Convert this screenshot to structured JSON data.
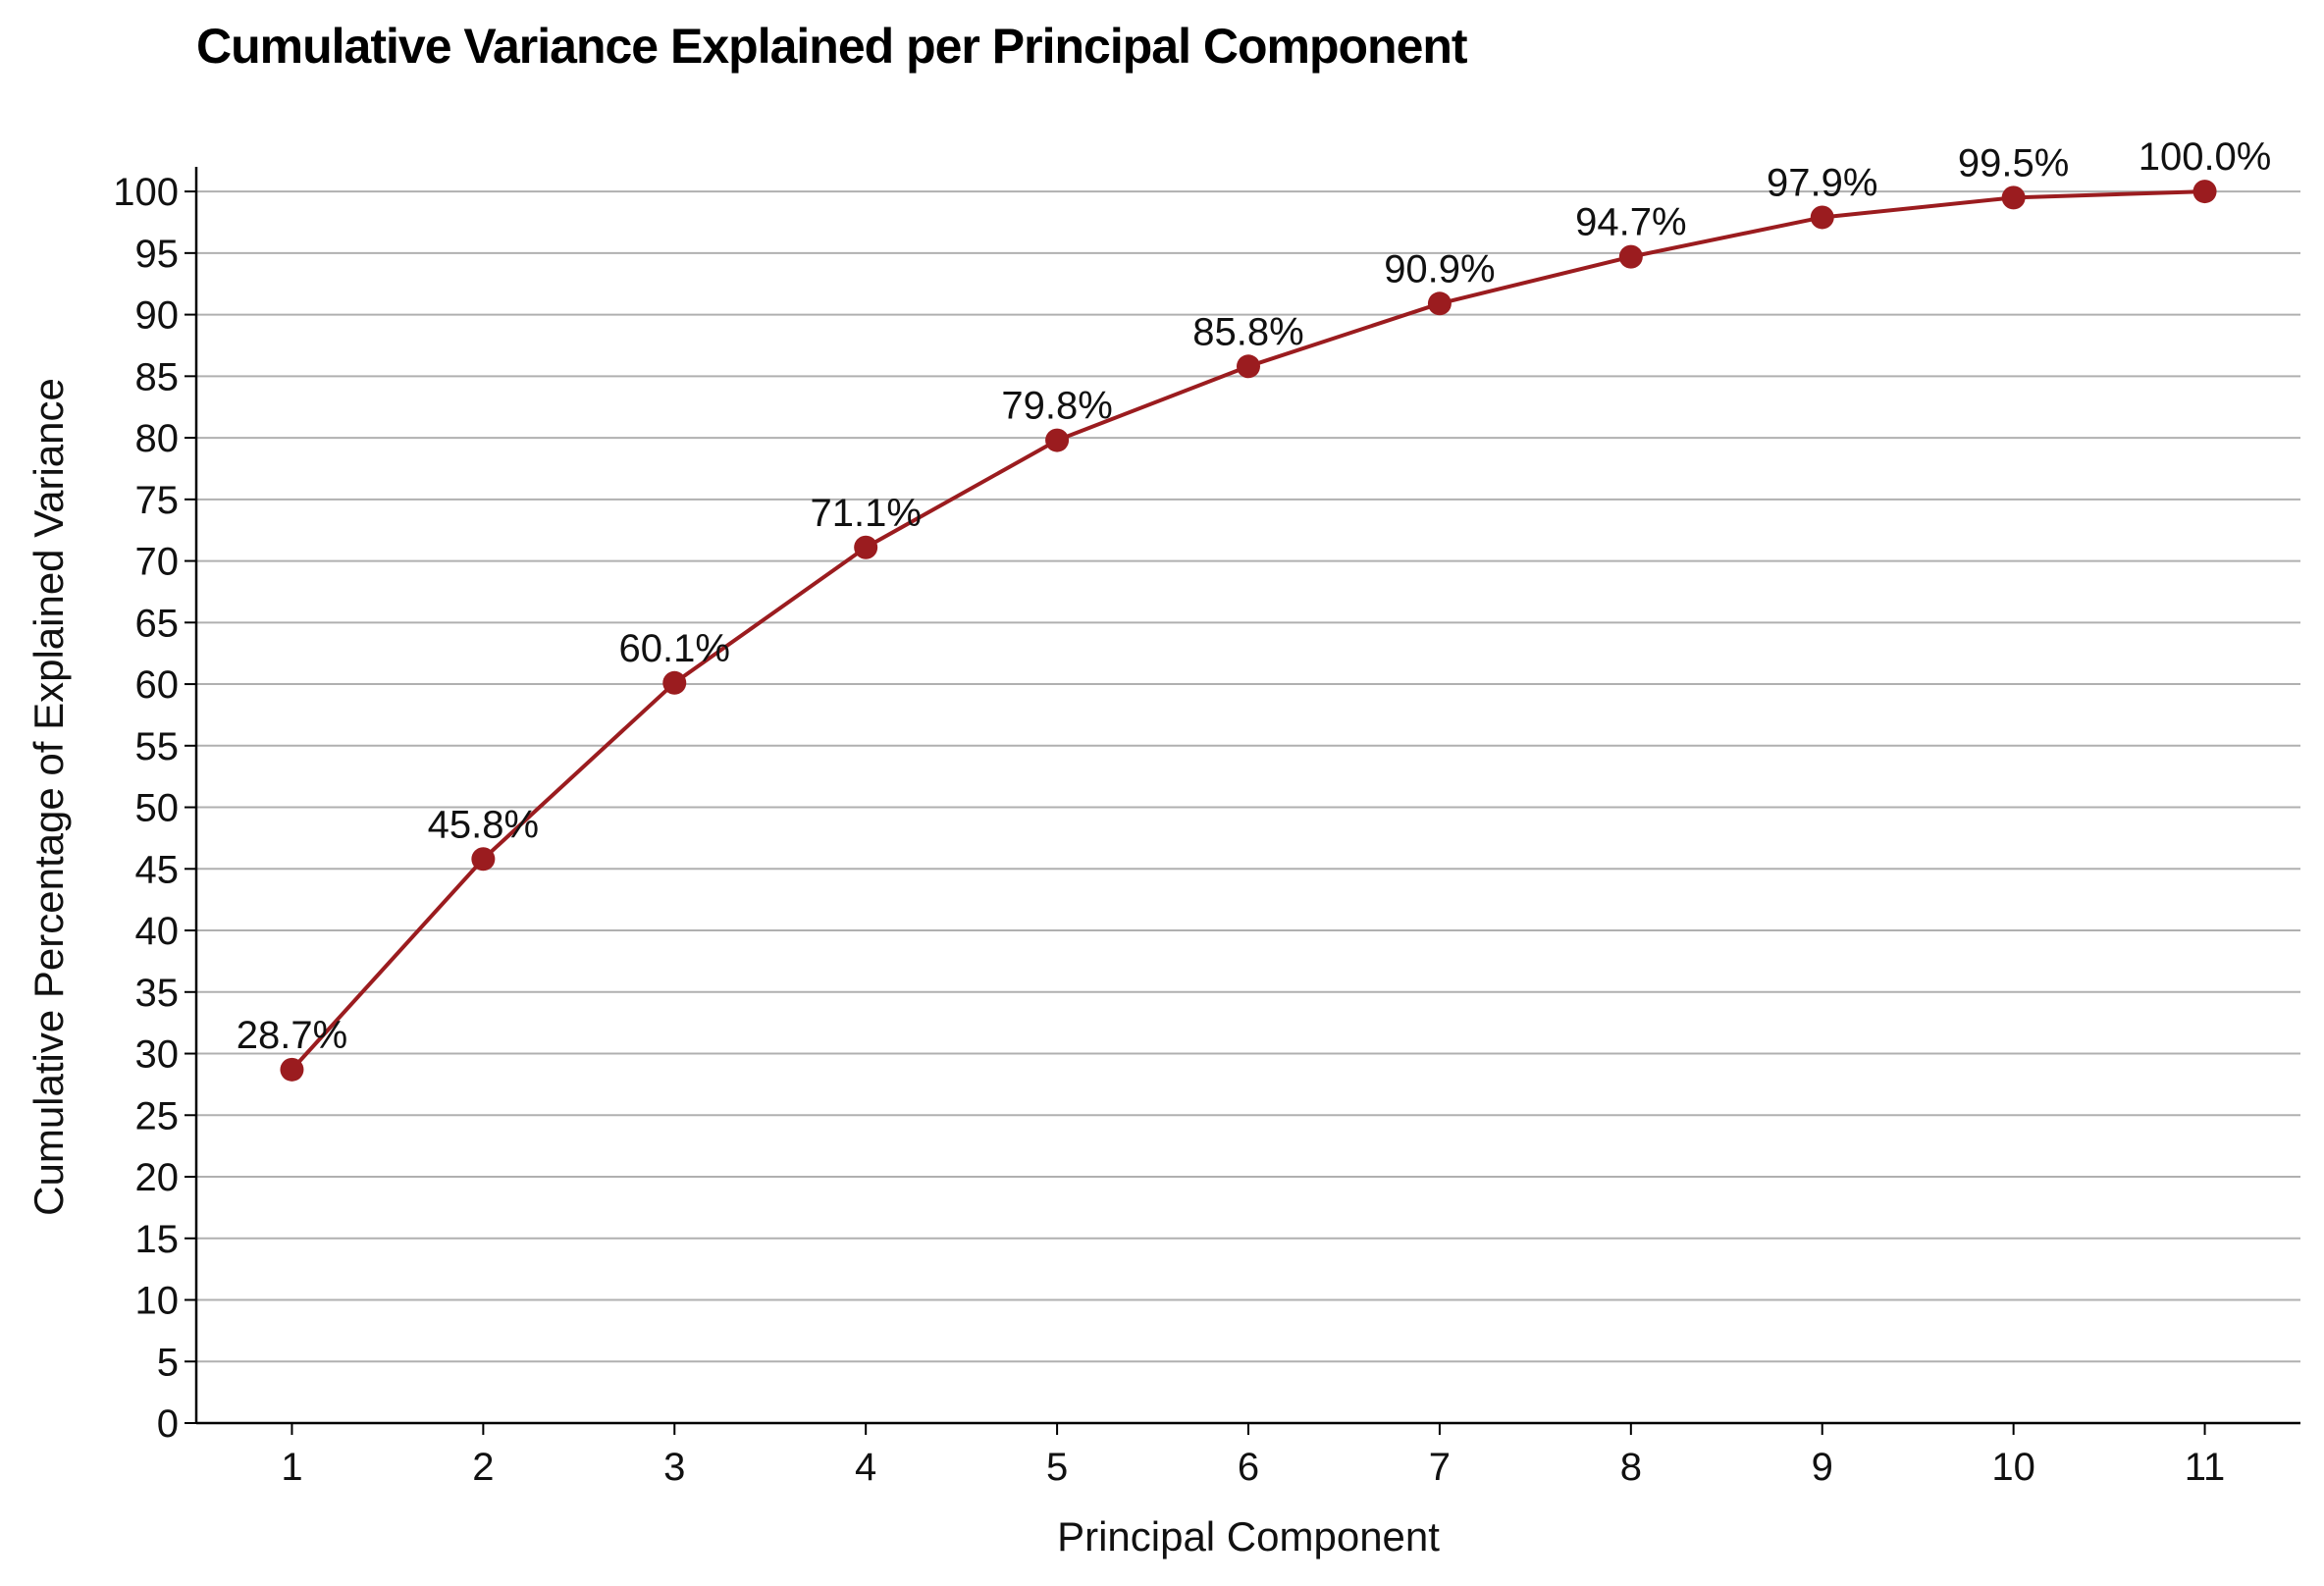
{
  "chart_data": {
    "type": "line",
    "title": "Cumulative Variance Explained per Principal Component",
    "xlabel": "Principal Component",
    "ylabel": "Cumulative Percentage of Explained Variance",
    "x": [
      1,
      2,
      3,
      4,
      5,
      6,
      7,
      8,
      9,
      10,
      11
    ],
    "series": [
      {
        "values": [
          28.7,
          45.8,
          60.1,
          71.1,
          79.8,
          85.8,
          90.9,
          94.7,
          97.9,
          99.5,
          100.0
        ]
      }
    ],
    "data_labels": [
      "28.7%",
      "45.8%",
      "60.1%",
      "71.1%",
      "79.8%",
      "85.8%",
      "90.9%",
      "94.7%",
      "97.9%",
      "99.5%",
      "100.0%"
    ],
    "x_ticks": [
      "1",
      "2",
      "3",
      "4",
      "5",
      "6",
      "7",
      "8",
      "9",
      "10",
      "11"
    ],
    "y_ticks": [
      "0",
      "5",
      "10",
      "15",
      "20",
      "25",
      "30",
      "35",
      "40",
      "45",
      "50",
      "55",
      "60",
      "65",
      "70",
      "75",
      "80",
      "85",
      "90",
      "95",
      "100"
    ],
    "xlim": [
      0.5,
      11.5
    ],
    "ylim": [
      0,
      102
    ],
    "grid": "horizontal",
    "line_color": "#9b1c1f",
    "grid_color": "#b0b0b0"
  }
}
